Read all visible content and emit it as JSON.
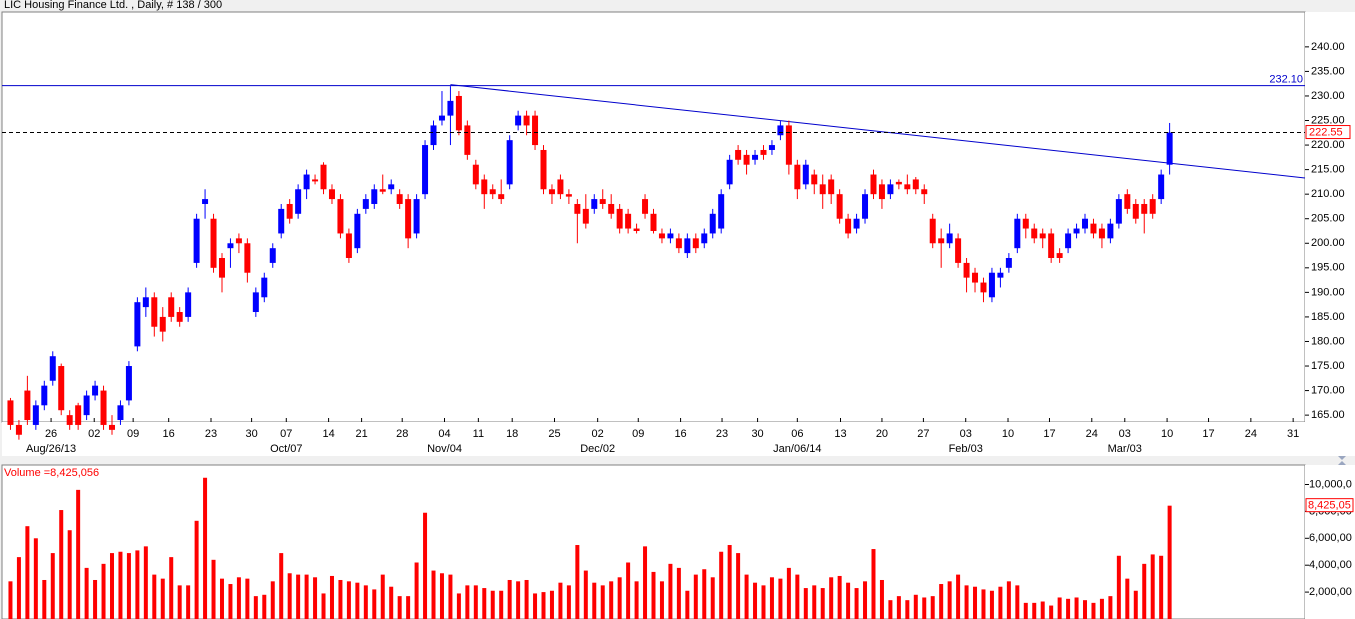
{
  "chart_data": [
    {
      "type": "candlestick",
      "title": "LIC Housing Finance Ltd. , Daily, # 138 / 300",
      "up_color": "#0000ff",
      "down_color": "#ff0000",
      "xlim": [
        -1,
        153
      ],
      "ylim": [
        163.6,
        247.1
      ],
      "yticks": [
        {
          "value": 165,
          "label": "165.00"
        },
        {
          "value": 170,
          "label": "170.00"
        },
        {
          "value": 175,
          "label": "175.00"
        },
        {
          "value": 180,
          "label": "180.00"
        },
        {
          "value": 185,
          "label": "185.00"
        },
        {
          "value": 190,
          "label": "190.00"
        },
        {
          "value": 195,
          "label": "195.00"
        },
        {
          "value": 200,
          "label": "200.00"
        },
        {
          "value": 205,
          "label": "205.00"
        },
        {
          "value": 210,
          "label": "210.00"
        },
        {
          "value": 215,
          "label": "215.00"
        },
        {
          "value": 220,
          "label": "220.00"
        },
        {
          "value": 225,
          "label": "225.00"
        },
        {
          "value": 230,
          "label": "230.00"
        },
        {
          "value": 235,
          "label": "235.00"
        },
        {
          "value": 240,
          "label": "240.00"
        }
      ],
      "xticks": [
        {
          "value": 4.8,
          "label": "26"
        },
        {
          "value": 9.9,
          "label": "02"
        },
        {
          "value": 14.5,
          "label": "09"
        },
        {
          "value": 18.7,
          "label": "16"
        },
        {
          "value": 23.7,
          "label": "23"
        },
        {
          "value": 28.5,
          "label": "30"
        },
        {
          "value": 32.6,
          "label": "07"
        },
        {
          "value": 37.6,
          "label": "14"
        },
        {
          "value": 41.5,
          "label": "21"
        },
        {
          "value": 46.3,
          "label": "28"
        },
        {
          "value": 51.3,
          "label": "04"
        },
        {
          "value": 55.3,
          "label": "11"
        },
        {
          "value": 59.3,
          "label": "18"
        },
        {
          "value": 64.3,
          "label": "25"
        },
        {
          "value": 69.4,
          "label": "02"
        },
        {
          "value": 74.2,
          "label": "09"
        },
        {
          "value": 79.2,
          "label": "16"
        },
        {
          "value": 84.1,
          "label": "23"
        },
        {
          "value": 88.3,
          "label": "30"
        },
        {
          "value": 93,
          "label": "06"
        },
        {
          "value": 98.1,
          "label": "13"
        },
        {
          "value": 103,
          "label": "20"
        },
        {
          "value": 107.9,
          "label": "27"
        },
        {
          "value": 112.9,
          "label": "03"
        },
        {
          "value": 117.9,
          "label": "10"
        },
        {
          "value": 122.8,
          "label": "17"
        },
        {
          "value": 127.8,
          "label": "24"
        },
        {
          "value": 131.7,
          "label": "03"
        },
        {
          "value": 136.7,
          "label": "10"
        },
        {
          "value": 141.6,
          "label": "17"
        },
        {
          "value": 146.6,
          "label": "24"
        },
        {
          "value": 151.6,
          "label": "31"
        }
      ],
      "x_major_labels": [
        {
          "value": 4.8,
          "label": "Aug/26/13"
        },
        {
          "value": 32.6,
          "label": "Oct/07"
        },
        {
          "value": 51.3,
          "label": "Nov/04"
        },
        {
          "value": 69.4,
          "label": "Dec/02"
        },
        {
          "value": 93,
          "label": "Jan/06/14"
        },
        {
          "value": 112.9,
          "label": "Feb/03"
        },
        {
          "value": 131.7,
          "label": "Mar/03"
        }
      ],
      "hline": {
        "value": 232.1,
        "label": "232.10",
        "color": "#0000cc"
      },
      "trendline": {
        "x": [
          52,
          153
        ],
        "y": [
          232.3,
          213.3
        ],
        "color": "#0000cc"
      },
      "ohlc": [
        [
          168,
          168.5,
          162,
          163
        ],
        [
          163,
          164,
          160,
          161
        ],
        [
          170,
          173,
          163,
          164
        ],
        [
          163,
          168,
          162,
          167
        ],
        [
          167,
          172,
          166,
          171
        ],
        [
          172,
          178,
          171,
          177
        ],
        [
          175,
          175.5,
          165,
          166
        ],
        [
          165,
          166,
          162,
          163
        ],
        [
          167,
          167.5,
          162,
          163
        ],
        [
          165,
          170,
          164,
          169
        ],
        [
          169,
          172,
          168,
          171
        ],
        [
          170,
          171,
          162,
          163
        ],
        [
          163,
          165,
          161,
          162
        ],
        [
          164,
          168,
          163,
          167
        ],
        [
          168,
          176,
          167,
          175
        ],
        [
          179,
          189,
          178,
          188
        ],
        [
          187,
          191,
          185,
          189
        ],
        [
          189,
          190,
          181,
          183
        ],
        [
          185,
          187,
          180,
          182
        ],
        [
          189,
          190,
          184,
          185
        ],
        [
          186,
          187,
          183,
          184
        ],
        [
          185,
          191,
          184,
          190
        ],
        [
          196,
          206,
          195,
          205
        ],
        [
          208,
          211,
          205,
          209
        ],
        [
          205,
          206,
          194,
          195
        ],
        [
          197,
          198,
          190,
          193
        ],
        [
          199,
          201,
          195,
          200
        ],
        [
          201,
          202,
          198,
          200
        ],
        [
          200,
          201,
          192,
          194
        ],
        [
          186,
          191,
          185,
          190
        ],
        [
          189,
          194,
          188,
          193
        ],
        [
          196,
          200,
          195,
          199
        ],
        [
          202,
          208,
          201,
          207
        ],
        [
          208,
          209,
          204,
          205
        ],
        [
          206,
          212,
          205,
          211
        ],
        [
          211,
          215,
          209,
          214
        ],
        [
          213,
          214,
          212,
          212.6
        ],
        [
          216,
          216.5,
          210,
          211
        ],
        [
          211,
          212,
          208,
          209
        ],
        [
          209,
          210,
          201,
          202
        ],
        [
          202,
          203,
          196,
          197
        ],
        [
          199,
          207,
          198,
          206
        ],
        [
          207,
          210,
          206,
          209
        ],
        [
          208,
          212,
          207,
          211
        ],
        [
          211,
          214,
          210,
          210.5
        ],
        [
          211,
          213,
          210,
          212
        ],
        [
          210,
          211,
          207,
          208
        ],
        [
          209,
          210,
          199,
          201
        ],
        [
          202,
          210,
          201,
          209
        ],
        [
          210,
          221,
          209,
          220
        ],
        [
          220,
          225,
          219,
          224
        ],
        [
          225,
          231,
          224,
          226
        ],
        [
          226,
          232,
          220,
          229
        ],
        [
          230,
          231,
          222,
          223
        ],
        [
          224,
          225,
          217,
          218
        ],
        [
          216,
          217,
          211,
          212
        ],
        [
          213,
          214,
          207,
          210
        ],
        [
          211,
          212,
          209,
          210
        ],
        [
          210,
          213,
          208,
          209
        ],
        [
          212,
          222,
          211,
          221
        ],
        [
          224,
          227,
          223,
          226
        ],
        [
          226,
          227,
          222,
          224
        ],
        [
          226,
          227,
          219,
          220
        ],
        [
          219,
          220,
          210,
          211
        ],
        [
          211,
          212,
          208,
          210
        ],
        [
          213,
          214,
          209,
          210
        ],
        [
          210,
          211,
          208,
          209.5
        ],
        [
          208,
          209,
          200,
          206
        ],
        [
          207,
          210,
          203,
          204
        ],
        [
          207,
          210,
          206,
          209
        ],
        [
          209,
          211,
          207,
          208
        ],
        [
          208,
          210,
          205,
          206
        ],
        [
          207,
          208,
          202,
          203
        ],
        [
          206,
          207,
          202,
          203
        ],
        [
          203,
          204,
          202,
          202.5
        ],
        [
          209,
          210,
          205,
          206
        ],
        [
          206,
          207,
          202,
          202.5
        ],
        [
          202,
          203,
          200,
          201
        ],
        [
          201,
          203,
          200,
          202
        ],
        [
          201,
          202,
          198,
          199
        ],
        [
          198,
          202,
          197,
          201
        ],
        [
          201,
          202,
          198,
          199
        ],
        [
          200,
          203,
          199,
          202
        ],
        [
          202,
          207,
          201,
          206
        ],
        [
          203,
          211,
          202,
          210
        ],
        [
          212,
          218,
          211,
          217
        ],
        [
          219,
          220,
          216,
          217
        ],
        [
          218,
          219,
          214,
          216
        ],
        [
          217,
          219,
          216,
          218
        ],
        [
          219,
          220,
          217,
          218
        ],
        [
          219,
          221,
          218,
          220
        ],
        [
          222,
          225,
          221,
          224
        ],
        [
          224,
          225,
          214,
          216
        ],
        [
          216,
          217,
          209,
          211
        ],
        [
          212,
          217,
          211,
          216
        ],
        [
          214,
          215,
          210,
          212
        ],
        [
          212,
          214,
          207,
          210
        ],
        [
          213,
          214,
          208,
          210
        ],
        [
          210,
          211,
          204,
          205
        ],
        [
          205,
          206,
          201,
          202
        ],
        [
          203,
          206,
          202,
          205
        ],
        [
          205,
          211,
          204,
          210
        ],
        [
          214,
          215,
          209,
          210
        ],
        [
          212,
          213,
          207,
          209
        ],
        [
          210,
          213,
          209,
          212
        ],
        [
          212.5,
          213,
          211,
          212
        ],
        [
          212,
          214,
          210,
          211
        ],
        [
          213,
          213.5,
          210,
          211
        ],
        [
          211,
          212,
          208,
          210
        ],
        [
          205,
          206,
          199,
          200
        ],
        [
          201,
          203,
          195,
          200
        ],
        [
          200,
          204,
          199,
          202
        ],
        [
          201,
          202,
          195,
          196
        ],
        [
          196,
          197,
          190,
          193
        ],
        [
          194,
          195,
          190,
          192
        ],
        [
          192,
          193,
          188,
          190
        ],
        [
          189,
          195,
          188,
          194
        ],
        [
          193,
          195,
          191,
          194
        ],
        [
          195,
          198,
          194,
          197
        ],
        [
          199,
          206,
          198,
          205
        ],
        [
          205,
          206,
          201,
          203
        ],
        [
          203,
          204,
          200,
          201
        ],
        [
          202,
          203,
          199,
          201
        ],
        [
          202,
          203,
          196,
          197
        ],
        [
          198,
          199,
          196,
          197
        ],
        [
          199,
          203,
          198,
          202
        ],
        [
          202,
          204,
          201,
          203
        ],
        [
          203,
          206,
          202,
          205
        ],
        [
          204,
          205,
          201,
          202
        ],
        [
          203,
          204,
          199,
          201
        ],
        [
          201,
          205,
          200,
          204
        ],
        [
          204,
          210,
          203,
          209
        ],
        [
          210,
          211,
          206,
          207
        ],
        [
          208,
          209,
          204,
          205
        ],
        [
          208,
          209,
          202,
          206
        ],
        [
          209,
          210,
          205,
          206
        ],
        [
          209,
          215,
          208,
          214
        ],
        [
          216,
          224.5,
          214,
          222.55
        ]
      ]
    },
    {
      "type": "bar",
      "title": "Volume =8,425,056",
      "color": "#ff0000",
      "xlim": [
        -1,
        153
      ],
      "ylim": [
        0,
        11300000
      ],
      "yticks": [
        {
          "value": 2000000,
          "label": "2,000,00"
        },
        {
          "value": 4000000,
          "label": "4,000,00"
        },
        {
          "value": 6000000,
          "label": "6,000,00"
        },
        {
          "value": 8000000,
          "label": "8,000,00"
        },
        {
          "value": 10000000,
          "label": "10,000,0"
        }
      ],
      "last_value_label": "8,425,05",
      "values": [
        2800000,
        4600000,
        6900000,
        6000000,
        2900000,
        4900000,
        8100000,
        6600000,
        9600000,
        3800000,
        2900000,
        4100000,
        4900000,
        5000000,
        4900000,
        5100000,
        5400000,
        3300000,
        3000000,
        4600000,
        2500000,
        2500000,
        7300000,
        10500000,
        4400000,
        3000000,
        2600000,
        3100000,
        3000000,
        1700000,
        1800000,
        2800000,
        4900000,
        3400000,
        3300000,
        3300000,
        3100000,
        1900000,
        3200000,
        2900000,
        2800000,
        2700000,
        2500000,
        2200000,
        3300000,
        2400000,
        1700000,
        1700000,
        4200000,
        7900000,
        3600000,
        3400000,
        3300000,
        1900000,
        2500000,
        2500000,
        2300000,
        2100000,
        2100000,
        2900000,
        2800000,
        2900000,
        1900000,
        2000000,
        2100000,
        2700000,
        2500000,
        5500000,
        3600000,
        2700000,
        2500000,
        2800000,
        3100000,
        4200000,
        2800000,
        5400000,
        3500000,
        2800000,
        4100000,
        3800000,
        2100000,
        3300000,
        3700000,
        3100000,
        5000000,
        5500000,
        4900000,
        3300000,
        2700000,
        2500000,
        3100000,
        3000000,
        3800000,
        3300000,
        2300000,
        2500000,
        2300000,
        3100000,
        3200000,
        2700000,
        2300000,
        2800000,
        5200000,
        2900000,
        1400000,
        1700000,
        1400000,
        1800000,
        1600000,
        1700000,
        2600000,
        2800000,
        3300000,
        2500000,
        2400000,
        2200000,
        2100000,
        2400000,
        2800000,
        2500000,
        1200000,
        1200000,
        1300000,
        1000000,
        1600000,
        1500000,
        1600000,
        1400000,
        1200000,
        1500000,
        1700000,
        4700000,
        3000000,
        2100000,
        4100000,
        4800000,
        4700000,
        8425056
      ]
    }
  ]
}
